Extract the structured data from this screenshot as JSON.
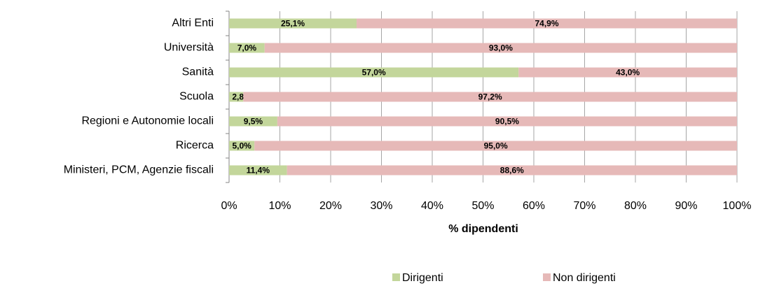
{
  "chart_data": {
    "type": "stacked-bar-horizontal",
    "xlabel": "% dipendenti",
    "categories": [
      "Altri Enti",
      "Università",
      "Sanità",
      "Scuola",
      "Regioni e Autonomie locali",
      "Ricerca",
      "Ministeri, PCM, Agenzie fiscali"
    ],
    "series": [
      {
        "name": "Dirigenti",
        "color": "#c3d69b",
        "values": [
          25.1,
          7.0,
          57.0,
          2.8,
          9.5,
          5.0,
          11.4
        ],
        "value_labels": [
          "25,1%",
          "7,0%",
          "57,0%",
          "2,8%",
          "9,5%",
          "5,0%",
          "11,4%"
        ]
      },
      {
        "name": "Non dirigenti",
        "color": "#e6b9b8",
        "values": [
          74.9,
          93.0,
          43.0,
          97.2,
          90.5,
          95.0,
          88.6
        ],
        "value_labels": [
          "74,9%",
          "93,0%",
          "43,0%",
          "97,2%",
          "90,5%",
          "95,0%",
          "88,6%"
        ]
      }
    ],
    "xlim": [
      0,
      100
    ],
    "xticks": [
      {
        "value": 0,
        "label": "0%"
      },
      {
        "value": 10,
        "label": "10%"
      },
      {
        "value": 20,
        "label": "20%"
      },
      {
        "value": 30,
        "label": "30%"
      },
      {
        "value": 40,
        "label": "40%"
      },
      {
        "value": 50,
        "label": "50%"
      },
      {
        "value": 60,
        "label": "60%"
      },
      {
        "value": 70,
        "label": "70%"
      },
      {
        "value": 80,
        "label": "80%"
      },
      {
        "value": 90,
        "label": "90%"
      },
      {
        "value": 100,
        "label": "100%"
      }
    ],
    "grid": true,
    "legend": "bottom"
  }
}
